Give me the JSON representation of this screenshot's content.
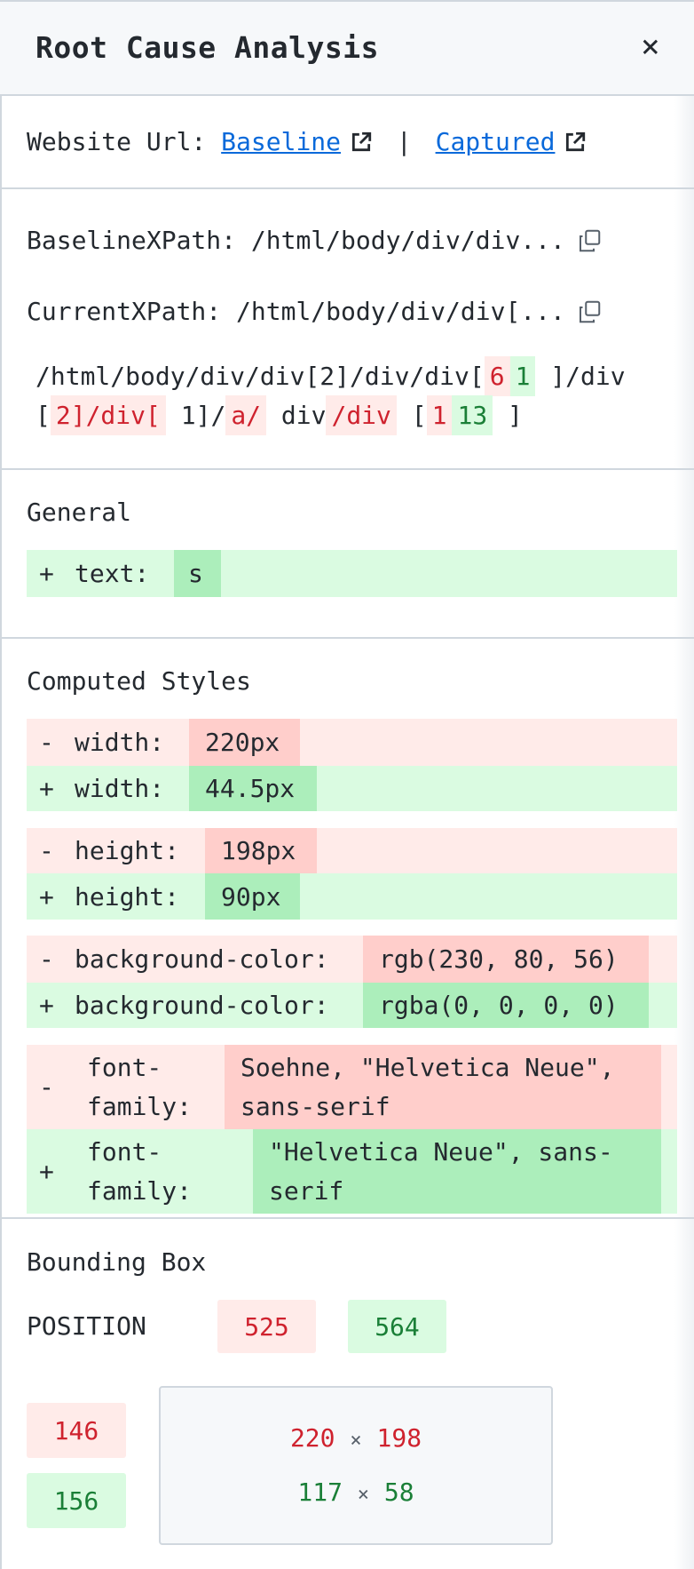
{
  "header": {
    "title": "Root Cause Analysis",
    "close_icon": "close-icon",
    "close_glyph": "×"
  },
  "website_url": {
    "label": "Website Url:",
    "baseline_label": "Baseline",
    "separator": "|",
    "captured_label": "Captured",
    "icon": "external-link-icon"
  },
  "xpath": {
    "baseline_label": "BaselineXPath:",
    "baseline_value": "/html/body/div/div...",
    "current_label": "CurrentXPath:",
    "current_value": "/html/body/div/div[...",
    "copy_icon": "copy-icon",
    "diff_segments": [
      {
        "type": "same",
        "text": "/html/body/div/div[2]/div/div["
      },
      {
        "type": "removed",
        "text": "6"
      },
      {
        "type": "added",
        "text": "1"
      },
      {
        "type": "same",
        "text": " ]/div["
      },
      {
        "type": "removed",
        "text": "2]/div["
      },
      {
        "type": "same",
        "text": " 1]/"
      },
      {
        "type": "removed",
        "text": "a/"
      },
      {
        "type": "same",
        "text": " div"
      },
      {
        "type": "removed",
        "text": "/div"
      },
      {
        "type": "same",
        "text": " ["
      },
      {
        "type": "removed",
        "text": "1"
      },
      {
        "type": "added",
        "text": "13"
      },
      {
        "type": "same",
        "text": " ]"
      }
    ]
  },
  "general": {
    "title": "General",
    "rows": [
      {
        "sign": "+",
        "key": "text:",
        "value": "s"
      }
    ]
  },
  "computed_styles": {
    "title": "Computed Styles",
    "rows": [
      {
        "sign": "-",
        "key": "width:",
        "value": "220px"
      },
      {
        "sign": "+",
        "key": "width:",
        "value": "44.5px"
      },
      {
        "sign": "-",
        "key": "height:",
        "value": "198px"
      },
      {
        "sign": "+",
        "key": "height:",
        "value": "90px"
      },
      {
        "sign": "-",
        "key": "background-color:",
        "value": "rgb(230, 80, 56)"
      },
      {
        "sign": "+",
        "key": "background-color:",
        "value": "rgba(0, 0, 0, 0)"
      },
      {
        "sign": "-",
        "key": "font-family:",
        "key_lines": [
          "font-",
          "family:"
        ],
        "value_lines": [
          "Soehne, \"Helvetica Neue\",",
          "sans-serif"
        ]
      },
      {
        "sign": "+",
        "key": "font-family:",
        "key_lines": [
          "font-",
          "family:"
        ],
        "value_lines": [
          "\"Helvetica Neue\", sans-",
          "serif"
        ]
      }
    ]
  },
  "bounding_box": {
    "title": "Bounding Box",
    "position_label": "POSITION",
    "x_baseline": "525",
    "x_current": "564",
    "y_baseline": "146",
    "y_current": "156",
    "size_baseline": {
      "w": "220",
      "h": "198"
    },
    "size_current": {
      "w": "117",
      "h": "58"
    },
    "times": "×"
  },
  "colors": {
    "removed_bg": "#ffebe9",
    "removed_strong": "#ffcecb",
    "removed_text": "#cf222e",
    "added_bg": "#dafbe1",
    "added_strong": "#aceebb",
    "added_text": "#1a7f37",
    "link": "#0969da",
    "header_bg": "#f6f8fa",
    "border": "#d0d7de"
  }
}
